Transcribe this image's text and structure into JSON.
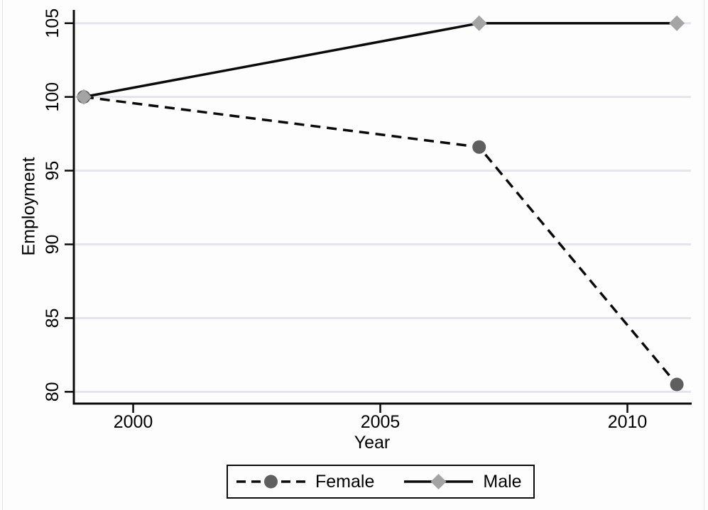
{
  "chart_data": {
    "type": "line",
    "title": "",
    "xlabel": "Year",
    "ylabel": "Employment",
    "x": [
      1999,
      2007,
      2011
    ],
    "series": [
      {
        "name": "Female",
        "values": [
          100,
          96.6,
          80.5
        ],
        "line_style": "dashed",
        "marker": "circle",
        "line_color": "#0a0a0a",
        "marker_color": "#5f5f5f"
      },
      {
        "name": "Male",
        "values": [
          100,
          105,
          105
        ],
        "line_style": "solid",
        "marker": "diamond",
        "line_color": "#0a0a0a",
        "marker_color": "#a4a4a4"
      }
    ],
    "xticks": [
      2000,
      2005,
      2010
    ],
    "yticks": [
      80,
      85,
      90,
      95,
      100,
      105
    ],
    "xlim": [
      1998.8,
      2011.3
    ],
    "ylim": [
      79.2,
      105.9
    ],
    "grid": "horizontal-only",
    "legend_position": "bottom-center"
  },
  "colors": {
    "axis": "#0a0a0a",
    "grid": "#e6e4ea",
    "text": "#000000",
    "background": "#fdfdfd"
  }
}
